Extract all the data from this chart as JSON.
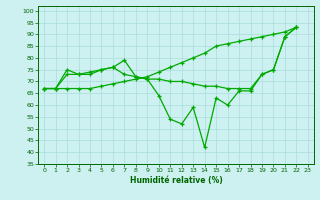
{
  "xlabel": "Humidité relative (%)",
  "background_color": "#cdf0f0",
  "grid_color": "#aadddd",
  "line_color": "#00aa00",
  "xlim": [
    -0.5,
    23.5
  ],
  "ylim": [
    35,
    102
  ],
  "yticks": [
    35,
    40,
    45,
    50,
    55,
    60,
    65,
    70,
    75,
    80,
    85,
    90,
    95,
    100
  ],
  "xticks": [
    0,
    1,
    2,
    3,
    4,
    5,
    6,
    7,
    8,
    9,
    10,
    11,
    12,
    13,
    14,
    15,
    16,
    17,
    18,
    19,
    20,
    21,
    22,
    23
  ],
  "series1": [
    67,
    67,
    75,
    73,
    73,
    75,
    76,
    79,
    72,
    71,
    64,
    54,
    52,
    59,
    42,
    63,
    60,
    66,
    66,
    73,
    75,
    89,
    93
  ],
  "series2": [
    67,
    67,
    73,
    73,
    74,
    75,
    76,
    73,
    72,
    71,
    71,
    70,
    70,
    69,
    68,
    68,
    67,
    67,
    67,
    73,
    75,
    89,
    93
  ],
  "series3": [
    67,
    67,
    67,
    67,
    67,
    68,
    69,
    70,
    71,
    72,
    74,
    76,
    78,
    80,
    82,
    85,
    86,
    87,
    88,
    89,
    90,
    91,
    93
  ]
}
